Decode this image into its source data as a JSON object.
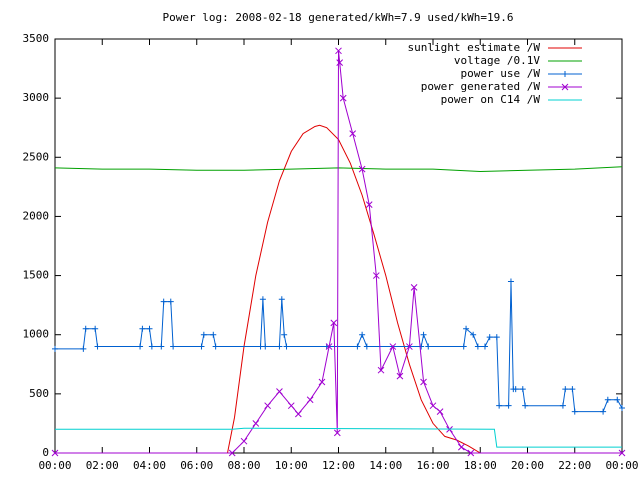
{
  "chart_data": {
    "type": "line",
    "title": "Power log: 2008-02-18 generated/kWh=7.9 used/kWh=19.6",
    "xlim": [
      0,
      24
    ],
    "xticks": [
      {
        "value": 0,
        "label": "00:00"
      },
      {
        "value": 2,
        "label": "02:00"
      },
      {
        "value": 4,
        "label": "04:00"
      },
      {
        "value": 6,
        "label": "06:00"
      },
      {
        "value": 8,
        "label": "08:00"
      },
      {
        "value": 10,
        "label": "10:00"
      },
      {
        "value": 12,
        "label": "12:00"
      },
      {
        "value": 14,
        "label": "14:00"
      },
      {
        "value": 16,
        "label": "16:00"
      },
      {
        "value": 18,
        "label": "18:00"
      },
      {
        "value": 20,
        "label": "20:00"
      },
      {
        "value": 22,
        "label": "22:00"
      },
      {
        "value": 24,
        "label": "00:00"
      }
    ],
    "ylim": [
      0,
      3500
    ],
    "yticks": [
      0,
      500,
      1000,
      1500,
      2000,
      2500,
      3000,
      3500
    ],
    "legend": "top-right",
    "series": [
      {
        "name": "sunlight estimate /W",
        "color": "#e00000",
        "x": [
          0,
          7.3,
          7.6,
          8,
          8.5,
          9,
          9.5,
          10,
          10.5,
          11,
          11.2,
          11.5,
          12,
          12.5,
          13,
          13.5,
          14,
          14.5,
          15,
          15.5,
          16,
          16.5,
          17,
          17.5,
          18,
          24
        ],
        "values": [
          0,
          0,
          300,
          900,
          1500,
          1950,
          2300,
          2550,
          2700,
          2760,
          2770,
          2750,
          2650,
          2450,
          2180,
          1850,
          1500,
          1100,
          750,
          450,
          250,
          140,
          110,
          60,
          0,
          0
        ]
      },
      {
        "name": "voltage /0.1V",
        "color": "#00a000",
        "x": [
          0,
          2,
          4,
          6,
          8,
          10,
          12,
          14,
          16,
          18,
          20,
          22,
          24
        ],
        "values": [
          2410,
          2400,
          2400,
          2390,
          2390,
          2400,
          2410,
          2400,
          2400,
          2380,
          2390,
          2400,
          2420
        ]
      },
      {
        "name": "power use /W",
        "color": "#0060d0",
        "marker": "plus",
        "x": [
          0,
          1.2,
          1.3,
          1.7,
          1.8,
          3.6,
          3.7,
          4.0,
          4.1,
          4.5,
          4.6,
          4.9,
          5.0,
          6.2,
          6.3,
          6.7,
          6.8,
          8.7,
          8.8,
          8.9,
          9.5,
          9.6,
          9.7,
          9.8,
          11.5,
          12.8,
          13.0,
          13.2,
          15.5,
          15.6,
          15.8,
          17.3,
          17.4,
          17.7,
          17.9,
          18.2,
          18.4,
          18.7,
          18.8,
          19.2,
          19.3,
          19.4,
          19.5,
          19.8,
          19.9,
          21.5,
          21.6,
          21.9,
          22.0,
          23.2,
          23.4,
          23.8,
          24.0
        ],
        "values": [
          880,
          880,
          1050,
          1050,
          900,
          900,
          1050,
          1050,
          900,
          900,
          1280,
          1280,
          900,
          900,
          1000,
          1000,
          900,
          900,
          1300,
          900,
          900,
          1300,
          1000,
          900,
          900,
          900,
          1000,
          900,
          900,
          1000,
          900,
          900,
          1050,
          1000,
          900,
          900,
          980,
          980,
          400,
          400,
          1450,
          540,
          540,
          540,
          400,
          400,
          540,
          540,
          350,
          350,
          450,
          450,
          380
        ]
      },
      {
        "name": "power generated /W",
        "color": "#a000d0",
        "marker": "cross",
        "x": [
          0,
          7.5,
          8,
          8.5,
          9,
          9.5,
          10,
          10.3,
          10.8,
          11.3,
          11.6,
          11.8,
          11.95,
          12.0,
          12.05,
          12.2,
          12.6,
          13,
          13.3,
          13.6,
          13.8,
          14.3,
          14.6,
          15.0,
          15.2,
          15.6,
          16.0,
          16.3,
          16.7,
          17.2,
          17.6,
          24
        ],
        "values": [
          0,
          0,
          100,
          250,
          400,
          520,
          400,
          330,
          450,
          600,
          900,
          1100,
          170,
          3400,
          3300,
          3000,
          2700,
          2400,
          2100,
          1500,
          700,
          900,
          650,
          900,
          1400,
          600,
          400,
          350,
          200,
          50,
          0,
          0
        ]
      },
      {
        "name": "power on C14 /W",
        "color": "#00d0d0",
        "x": [
          0,
          7.5,
          8,
          18.6,
          18.7,
          24
        ],
        "values": [
          200,
          200,
          210,
          200,
          50,
          50
        ]
      }
    ]
  }
}
